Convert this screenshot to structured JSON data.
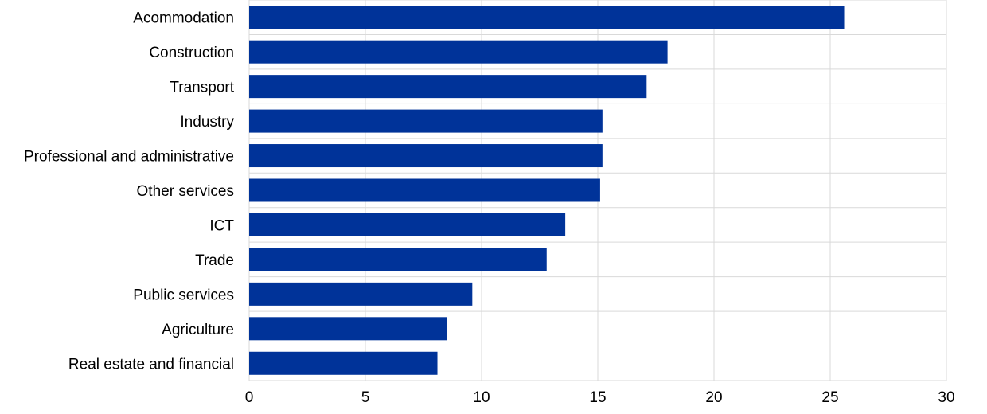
{
  "chart_data": {
    "type": "bar",
    "orientation": "horizontal",
    "categories": [
      "Acommodation",
      "Construction",
      "Transport",
      "Industry",
      "Professional and administrative",
      "Other services",
      "ICT",
      "Trade",
      "Public services",
      "Agriculture",
      "Real estate and financial"
    ],
    "values": [
      25.6,
      18.0,
      17.1,
      15.2,
      15.2,
      15.1,
      13.6,
      12.8,
      9.6,
      8.5,
      8.1
    ],
    "xlim": [
      0,
      30
    ],
    "xticks": [
      "0",
      "5",
      "10",
      "15",
      "20",
      "25",
      "30"
    ],
    "title": "",
    "xlabel": "",
    "ylabel": "",
    "grid": true,
    "bar_color": "#003399",
    "grid_color": "#d9d9d9"
  }
}
